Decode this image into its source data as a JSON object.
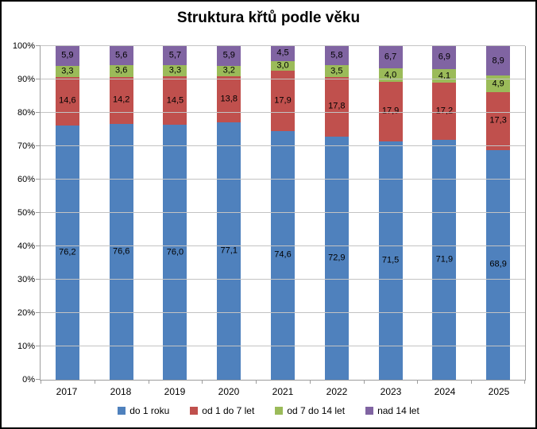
{
  "chart_data": {
    "type": "bar",
    "stacked": true,
    "percent_stacked": true,
    "title": "Struktura křtů podle věku",
    "categories": [
      "2017",
      "2018",
      "2019",
      "2020",
      "2021",
      "2022",
      "2023",
      "2024",
      "2025"
    ],
    "series": [
      {
        "name": "do 1 roku",
        "color": "#4F81BD",
        "values": [
          76.2,
          76.6,
          76.0,
          77.1,
          74.6,
          72.9,
          71.5,
          71.9,
          68.9
        ],
        "labels": [
          "76,2",
          "76,6",
          "76,0",
          "77,1",
          "74,6",
          "72,9",
          "71,5",
          "71,9",
          "68,9"
        ]
      },
      {
        "name": "od 1 do 7 let",
        "color": "#C0504D",
        "values": [
          14.6,
          14.2,
          14.5,
          13.8,
          17.9,
          17.8,
          17.9,
          17.2,
          17.3
        ],
        "labels": [
          "14,6",
          "14,2",
          "14,5",
          "13,8",
          "17,9",
          "17,8",
          "17,9",
          "17,2",
          "17,3"
        ]
      },
      {
        "name": "od 7 do 14 let",
        "color": "#9BBB59",
        "values": [
          3.3,
          3.6,
          3.3,
          3.2,
          3.0,
          3.5,
          4.0,
          4.1,
          4.9
        ],
        "labels": [
          "3,3",
          "3,6",
          "3,3",
          "3,2",
          "3,0",
          "3,5",
          "4,0",
          "4,1",
          "4,9"
        ]
      },
      {
        "name": "nad 14 let",
        "color": "#8064A2",
        "values": [
          5.9,
          5.6,
          5.7,
          5.9,
          4.5,
          5.8,
          6.7,
          6.9,
          8.9
        ],
        "labels": [
          "5,9",
          "5,6",
          "5,7",
          "5,9",
          "4,5",
          "5,8",
          "6,7",
          "6,9",
          "8,9"
        ]
      }
    ],
    "y_axis": {
      "min": 0,
      "max": 100,
      "tick_step": 10,
      "ticks": [
        "0%",
        "10%",
        "20%",
        "30%",
        "40%",
        "50%",
        "60%",
        "70%",
        "80%",
        "90%",
        "100%"
      ]
    },
    "grid": true,
    "legend_position": "bottom",
    "colors": {
      "gridline": "#c3c3c3",
      "axis": "#9d9d9d",
      "label_text": "#000000",
      "background": "#ffffff",
      "border": "#000000"
    }
  }
}
